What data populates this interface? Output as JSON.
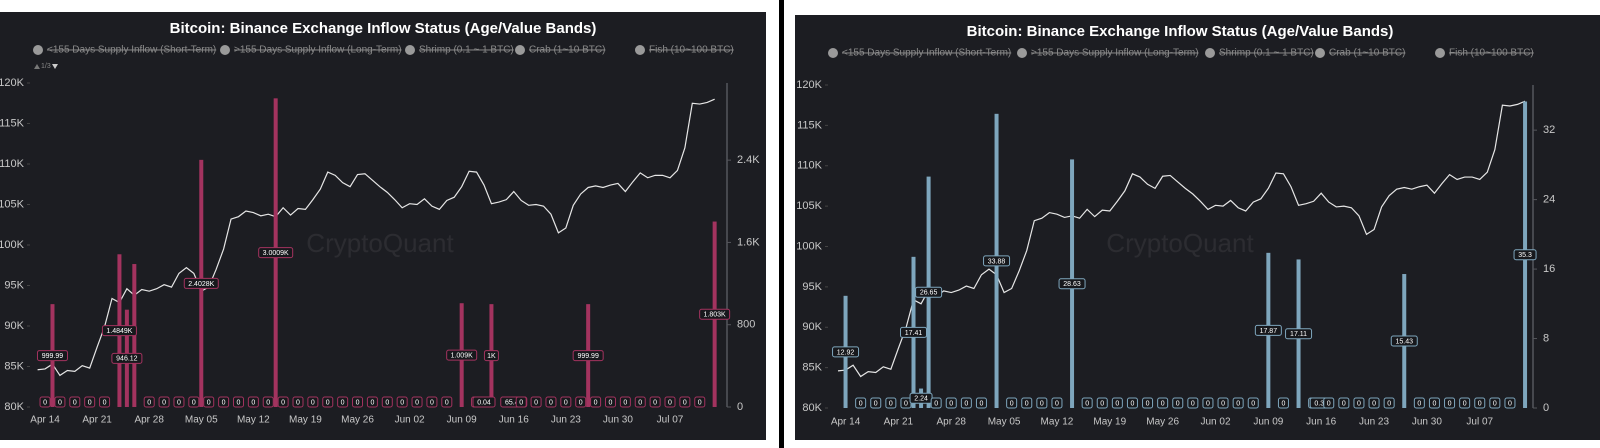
{
  "chart_data": [
    {
      "type": "bar",
      "title": "Bitcoin: Binance Exchange Inflow Status (Age/Value Bands)",
      "legend": [
        "<155 Days Supply Inflow (Short-Term)",
        ">155 Days Supply Inflow (Long-Term)",
        "Shrimp (0.1 ~ 1 BTC)",
        "Crab (1~10 BTC)",
        "Fish (10~100 BTC)"
      ],
      "pager": "1/3",
      "watermark": "CryptoQuant",
      "categories": [
        null,
        "Apr 14",
        null,
        null,
        null,
        null,
        null,
        null,
        "Apr 21",
        null,
        null,
        null,
        null,
        null,
        null,
        "Apr 28",
        null,
        null,
        null,
        null,
        null,
        null,
        "May 05",
        null,
        null,
        null,
        null,
        null,
        null,
        "May 12",
        null,
        null,
        null,
        null,
        null,
        null,
        "May 19",
        null,
        null,
        null,
        null,
        null,
        null,
        "May 26",
        null,
        null,
        null,
        null,
        null,
        null,
        "Jun 02",
        null,
        null,
        null,
        null,
        null,
        null,
        "Jun 09",
        null,
        null,
        null,
        null,
        null,
        null,
        "Jun 16",
        null,
        null,
        null,
        null,
        null,
        null,
        "Jun 23",
        null,
        null,
        null,
        null,
        null,
        null,
        "Jun 30",
        null,
        null,
        null,
        null,
        null,
        null,
        "Jul 07",
        null,
        null,
        null,
        null,
        null,
        null
      ],
      "series": [
        {
          "type": "line",
          "color": "#e6e6e6",
          "values": [
            84600,
            84700,
            85300,
            83900,
            84500,
            84400,
            85100,
            84800,
            87400,
            89900,
            93400,
            92900,
            94600,
            93800,
            94500,
            94300,
            94600,
            95100,
            94800,
            96500,
            97200,
            96500,
            94300,
            94800,
            97000,
            99500,
            103200,
            103500,
            104200,
            104000,
            103600,
            103800,
            103500,
            104600,
            103700,
            104500,
            104400,
            105600,
            106900,
            109000,
            108600,
            107700,
            107200,
            108700,
            108800,
            108000,
            107200,
            106500,
            105600,
            104600,
            105100,
            105000,
            105700,
            104800,
            104400,
            105500,
            105900,
            107200,
            109100,
            109000,
            107400,
            105100,
            105300,
            105600,
            106600,
            105500,
            104900,
            105000,
            104800,
            103800,
            101500,
            102100,
            104900,
            106300,
            107100,
            107300,
            107100,
            107400,
            107600,
            106600,
            107800,
            108900,
            108300,
            108600,
            108600,
            108300,
            109200,
            112000,
            117500,
            117400,
            117600,
            118000
          ]
        },
        {
          "type": "bar",
          "axis": "y2",
          "color": "#a3335f",
          "values": [
            0,
            0,
            999.99,
            0,
            0,
            0,
            0,
            0,
            0,
            0,
            0,
            1484.9,
            946.12,
            1390,
            0,
            0,
            0,
            0,
            0,
            0,
            0,
            0,
            2402.8,
            0,
            0,
            0,
            0,
            0,
            0,
            0,
            0,
            0,
            3000.9,
            0,
            0,
            0,
            0,
            0,
            0,
            0,
            0,
            0,
            0,
            0,
            0,
            0,
            0,
            0,
            0,
            0,
            0,
            0,
            0,
            0,
            0,
            0,
            0,
            1009,
            0,
            0,
            0.04,
            1000,
            0,
            0,
            65.41,
            0,
            0,
            0,
            0,
            0,
            0,
            0,
            0,
            0,
            999.99,
            0,
            0,
            0,
            0,
            0,
            0,
            0,
            0,
            0,
            0,
            0,
            0,
            0,
            0,
            0,
            0,
            1803
          ],
          "value_labels": [
            null,
            "0",
            "999.99",
            "0",
            null,
            "0",
            null,
            "0",
            null,
            "0",
            null,
            "1.4849K",
            "946.12",
            null,
            null,
            "0",
            null,
            "0",
            null,
            "0",
            null,
            "0",
            "2.4028K",
            "0",
            null,
            "0",
            null,
            "0",
            null,
            "0",
            null,
            "0",
            "3.0009K",
            "0",
            null,
            "0",
            null,
            "0",
            null,
            "0",
            null,
            "0",
            null,
            "0",
            null,
            "0",
            null,
            "0",
            null,
            "0",
            null,
            "0",
            null,
            "0",
            null,
            "0",
            null,
            "1.009K",
            null,
            "0",
            "0.04",
            "1K",
            null,
            "0",
            "65.41",
            "0",
            null,
            "0",
            null,
            "0",
            null,
            "0",
            null,
            "0",
            "999.99",
            "0",
            null,
            "0",
            null,
            "0",
            null,
            "0",
            null,
            "0",
            null,
            "0",
            null,
            "0",
            null,
            "0",
            null,
            "1.803K"
          ]
        }
      ],
      "ylim": [
        80000,
        120000
      ],
      "yticks": [
        {
          "value": 80000,
          "label": "80K"
        },
        {
          "value": 85000,
          "label": "85K"
        },
        {
          "value": 90000,
          "label": "90K"
        },
        {
          "value": 95000,
          "label": "95K"
        },
        {
          "value": 100000,
          "label": "100K"
        },
        {
          "value": 105000,
          "label": "105K"
        },
        {
          "value": 110000,
          "label": "110K"
        },
        {
          "value": 115000,
          "label": "115K"
        },
        {
          "value": 120000,
          "label": "120K"
        }
      ],
      "y2lim": [
        0,
        3150
      ],
      "y2ticks": [
        0,
        800,
        {
          "value": 1600,
          "label": "1.6K"
        },
        {
          "value": 2400,
          "label": "2.4K"
        }
      ]
    },
    {
      "type": "bar",
      "title": "Bitcoin: Binance Exchange Inflow Status (Age/Value Bands)",
      "legend": [
        "<155 Days Supply Inflow (Short-Term)",
        ">155 Days Supply Inflow (Long-Term)",
        "Shrimp (0.1 ~ 1 BTC)",
        "Crab (1~10 BTC)",
        "Fish (10~100 BTC)"
      ],
      "watermark": "CryptoQuant",
      "categories": [
        null,
        "Apr 14",
        null,
        null,
        null,
        null,
        null,
        null,
        "Apr 21",
        null,
        null,
        null,
        null,
        null,
        null,
        "Apr 28",
        null,
        null,
        null,
        null,
        null,
        null,
        "May 05",
        null,
        null,
        null,
        null,
        null,
        null,
        "May 12",
        null,
        null,
        null,
        null,
        null,
        null,
        "May 19",
        null,
        null,
        null,
        null,
        null,
        null,
        "May 26",
        null,
        null,
        null,
        null,
        null,
        null,
        "Jun 02",
        null,
        null,
        null,
        null,
        null,
        null,
        "Jun 09",
        null,
        null,
        null,
        null,
        null,
        null,
        "Jun 16",
        null,
        null,
        null,
        null,
        null,
        null,
        "Jun 23",
        null,
        null,
        null,
        null,
        null,
        null,
        "Jun 30",
        null,
        null,
        null,
        null,
        null,
        null,
        "Jul 07",
        null,
        null,
        null,
        null,
        null,
        null
      ],
      "series": [
        {
          "type": "line",
          "color": "#e6e6e6",
          "values": [
            84600,
            84700,
            85300,
            83900,
            84500,
            84400,
            85100,
            84800,
            87400,
            89900,
            93400,
            92900,
            94600,
            93800,
            94500,
            94300,
            94600,
            95100,
            94800,
            96500,
            97200,
            96500,
            94300,
            94800,
            97000,
            99500,
            103200,
            103500,
            104200,
            104000,
            103600,
            103800,
            103500,
            104600,
            103700,
            104500,
            104400,
            105600,
            106900,
            109000,
            108600,
            107700,
            107200,
            108700,
            108800,
            108000,
            107200,
            106500,
            105600,
            104600,
            105100,
            105000,
            105700,
            104800,
            104400,
            105500,
            105900,
            107200,
            109100,
            109000,
            107400,
            105100,
            105300,
            105600,
            106600,
            105500,
            104900,
            105000,
            104800,
            103800,
            101500,
            102100,
            104900,
            106300,
            107100,
            107300,
            107100,
            107400,
            107600,
            106600,
            107800,
            108900,
            108300,
            108600,
            108600,
            108300,
            109200,
            112000,
            117500,
            117400,
            117600,
            118000
          ]
        },
        {
          "type": "bar",
          "axis": "y2",
          "color": "#7ea6bd",
          "values": [
            0,
            12.92,
            0,
            0,
            0,
            0,
            0,
            0,
            0,
            0,
            17.41,
            2.24,
            26.65,
            0,
            0,
            0,
            0,
            0,
            0,
            0,
            0,
            33.88,
            0,
            0,
            0,
            0,
            0,
            0,
            0,
            0,
            0,
            28.63,
            0,
            0,
            0,
            0,
            0,
            0,
            0,
            0,
            0,
            0,
            0,
            0,
            0,
            0,
            0,
            0,
            0,
            0,
            0,
            0,
            0,
            0,
            0,
            0,
            0,
            17.87,
            0,
            0,
            0,
            17.11,
            0,
            0,
            0.34,
            0,
            0,
            0,
            0,
            0,
            0,
            0,
            0,
            0,
            0,
            15.43,
            0,
            0,
            0,
            0,
            0,
            0,
            0,
            0,
            0,
            0,
            0,
            0,
            0,
            0,
            0,
            35.3
          ],
          "value_labels": [
            null,
            "12.92",
            null,
            "0",
            null,
            "0",
            null,
            "0",
            null,
            "0",
            "17.41",
            "2.24",
            "26.65",
            "0",
            null,
            "0",
            null,
            "0",
            null,
            "0",
            null,
            "33.88",
            null,
            "0",
            null,
            "0",
            null,
            "0",
            null,
            "0",
            null,
            "28.63",
            null,
            "0",
            null,
            "0",
            null,
            "0",
            null,
            "0",
            null,
            "0",
            null,
            "0",
            null,
            "0",
            null,
            "0",
            null,
            "0",
            null,
            "0",
            null,
            "0",
            null,
            "0",
            null,
            "17.87",
            null,
            "0",
            null,
            "17.11",
            null,
            "0",
            "0.34",
            "0",
            null,
            "0",
            null,
            "0",
            null,
            "0",
            null,
            "0",
            null,
            "15.43",
            null,
            "0",
            null,
            "0",
            null,
            "0",
            null,
            "0",
            null,
            "0",
            null,
            "0",
            null,
            "0",
            null,
            "35.3"
          ]
        }
      ],
      "ylim": [
        80000,
        120000
      ],
      "yticks": [
        {
          "value": 80000,
          "label": "80K"
        },
        {
          "value": 85000,
          "label": "85K"
        },
        {
          "value": 90000,
          "label": "90K"
        },
        {
          "value": 95000,
          "label": "95K"
        },
        {
          "value": 100000,
          "label": "100K"
        },
        {
          "value": 105000,
          "label": "105K"
        },
        {
          "value": 110000,
          "label": "110K"
        },
        {
          "value": 115000,
          "label": "115K"
        },
        {
          "value": 120000,
          "label": "120K"
        }
      ],
      "y2lim": [
        0,
        37.2
      ],
      "y2ticks": [
        0,
        8,
        16,
        24,
        32
      ]
    }
  ]
}
